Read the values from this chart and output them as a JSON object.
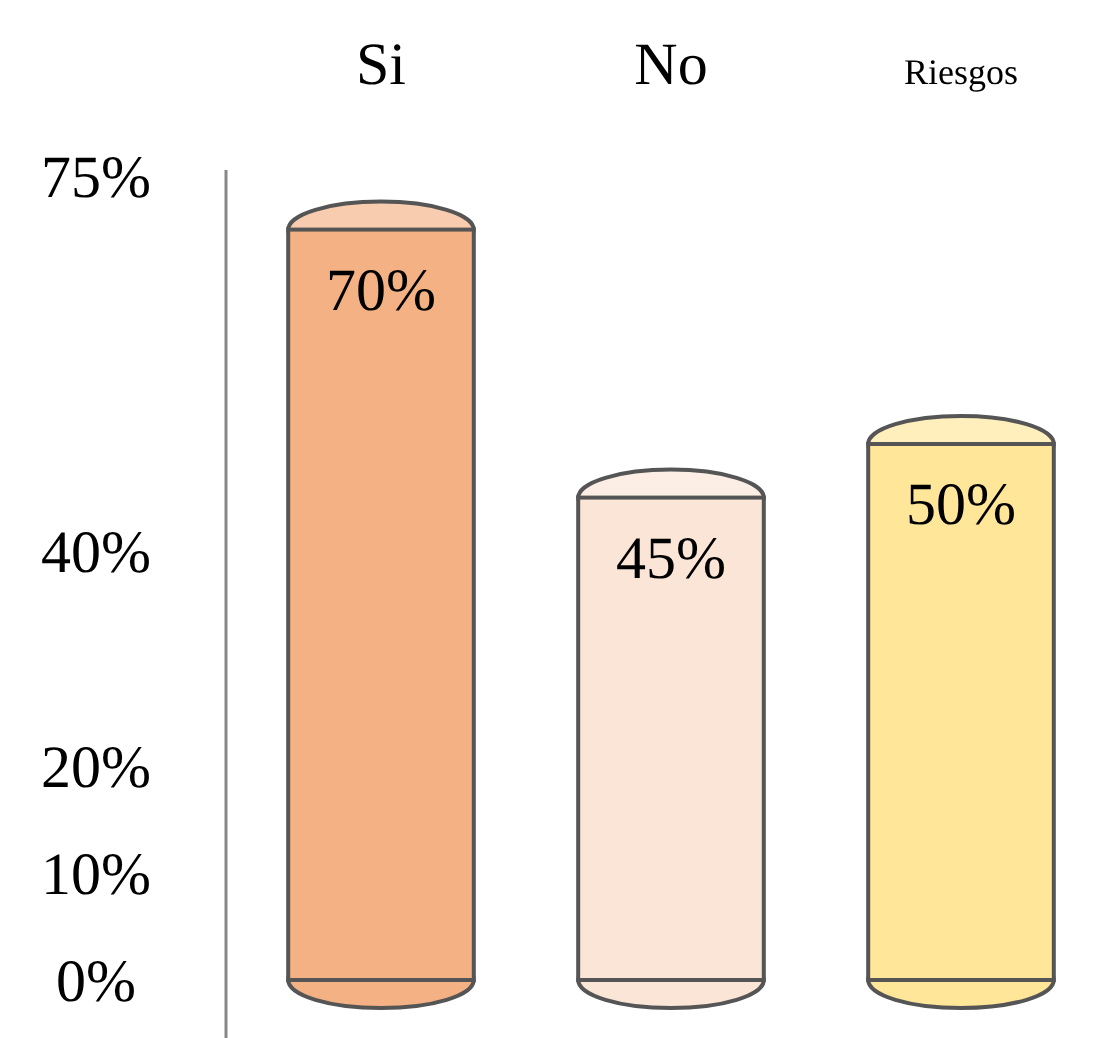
{
  "chart_data": {
    "type": "bar",
    "categories": [
      "Si",
      "No",
      "Riesgos"
    ],
    "values": [
      70,
      45,
      50
    ],
    "colors": [
      "#f4b183",
      "#fbe5d6",
      "#ffe699"
    ],
    "value_labels": [
      "70%",
      "45%",
      "50%"
    ],
    "ylim": [
      0,
      75
    ],
    "yticks": [
      {
        "value": 0,
        "label": "0%"
      },
      {
        "value": 10,
        "label": "10%"
      },
      {
        "value": 20,
        "label": "20%"
      },
      {
        "value": 40,
        "label": "40%"
      },
      {
        "value": 75,
        "label": "75%"
      }
    ],
    "grid": false,
    "legend": false
  }
}
